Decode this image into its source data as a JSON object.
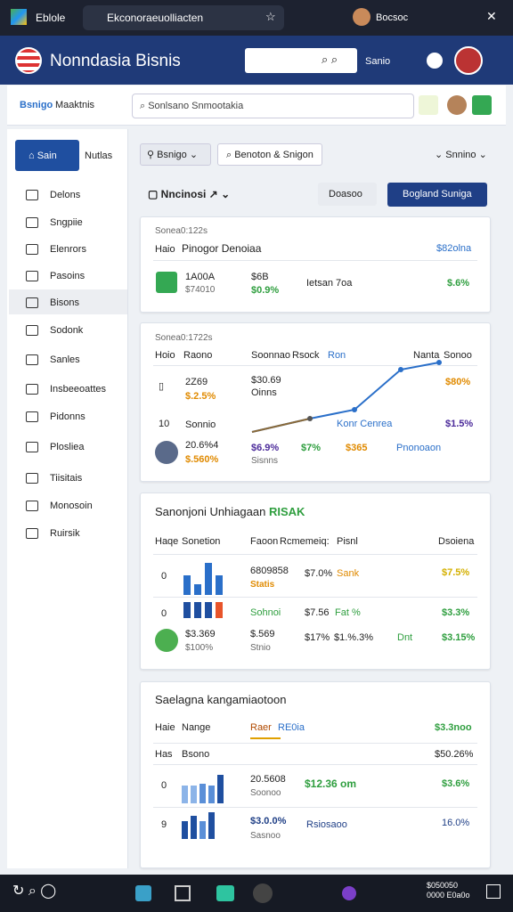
{
  "browser": {
    "tab_1": "Eblole",
    "tab_2": "Ekconoraeuolliacten",
    "profile": "Bocsoc"
  },
  "app_header": {
    "title": "Nonndasia Bisnis",
    "menu": "Sanio"
  },
  "sub_header": {
    "brand": "Bsnigo",
    "title": "Maaktnis",
    "search": "Sonlsano Snmootakia"
  },
  "sidebar": {
    "active": "Sain",
    "tab": "Nutlas",
    "items": [
      "Delons",
      "Sngpiie",
      "Elenrors",
      "Pasoins",
      "Bisons",
      "Sodonk",
      "Sanles",
      "Insbeeoattes",
      "Pidonns",
      "Plosliea",
      "Tiisitais",
      "Monosoin",
      "Ruirsik"
    ]
  },
  "toolbar": {
    "filter_1": "Bsnigo",
    "filter_2": "Benoton & Snigon",
    "sort": "Snnino"
  },
  "header_row": {
    "title": "Nncinosi",
    "button_1": "Doasoo",
    "button_2": "Bogland Suniga"
  },
  "card_1": {
    "label": "Sonea0:122s",
    "col": "Haio",
    "title": "Pinogor Denoiaa",
    "right": "$82olna",
    "cells": [
      "1A00A",
      "$74010",
      "$6B",
      "$0.9%",
      "Ietsan 7oa",
      "$.6%"
    ]
  },
  "card_2": {
    "label": "Sonea0:1722s",
    "headers": [
      "Hoio",
      "Raono",
      "Soonnao",
      "Rsock",
      "Ron",
      "Nanta",
      "Sonoo"
    ],
    "row_1": [
      "2Z69",
      "$.2.5%",
      "$30.69",
      "Oinns",
      "$80%"
    ],
    "row_2": [
      "10",
      "Sonnio",
      "Konr Cenrea",
      "$1.5%"
    ],
    "row_3": [
      "20.6%4",
      "$.560%",
      "$6.9%",
      "Sisnns",
      "$7%",
      "$365",
      "Pnonoaon"
    ]
  },
  "card_3": {
    "title": "Sanonjoni Unhiagaan",
    "accent": "RISAK",
    "headers": [
      "Haqe",
      "Sonetion",
      "Faoon",
      "Rcmemeiq:",
      "Pisnl",
      "Dsoiena"
    ],
    "row_1": [
      "0",
      "6809858",
      "Statis",
      "$7.0%",
      "Sank",
      "$7.5%"
    ],
    "row_2": [
      "0",
      "Sohnoi",
      "$7.56",
      "Fat %",
      "$3.3%"
    ],
    "row_3": [
      "$3.369",
      "$100%",
      "$.569",
      "Stnio",
      "$17%",
      "$1.%.3%",
      "Dnt",
      "$3.15%"
    ]
  },
  "card_4": {
    "title": "Saelagna kangamiaotoon",
    "headers": [
      "Haie",
      "Nange",
      "Raer",
      "RE0ia",
      "$3.3noo"
    ],
    "sub": [
      "Has",
      "Bsono",
      "$50.26%"
    ],
    "row_1": [
      "0",
      "20.5608",
      "Soonoo",
      "$12.36 om",
      "$3.6%"
    ],
    "row_2": [
      "9",
      "$3.0.0%",
      "Sasnoo",
      "Rsiosaoo",
      "16.0%"
    ]
  },
  "taskbar": {
    "clock": "$050050 0000 E0a0o"
  }
}
